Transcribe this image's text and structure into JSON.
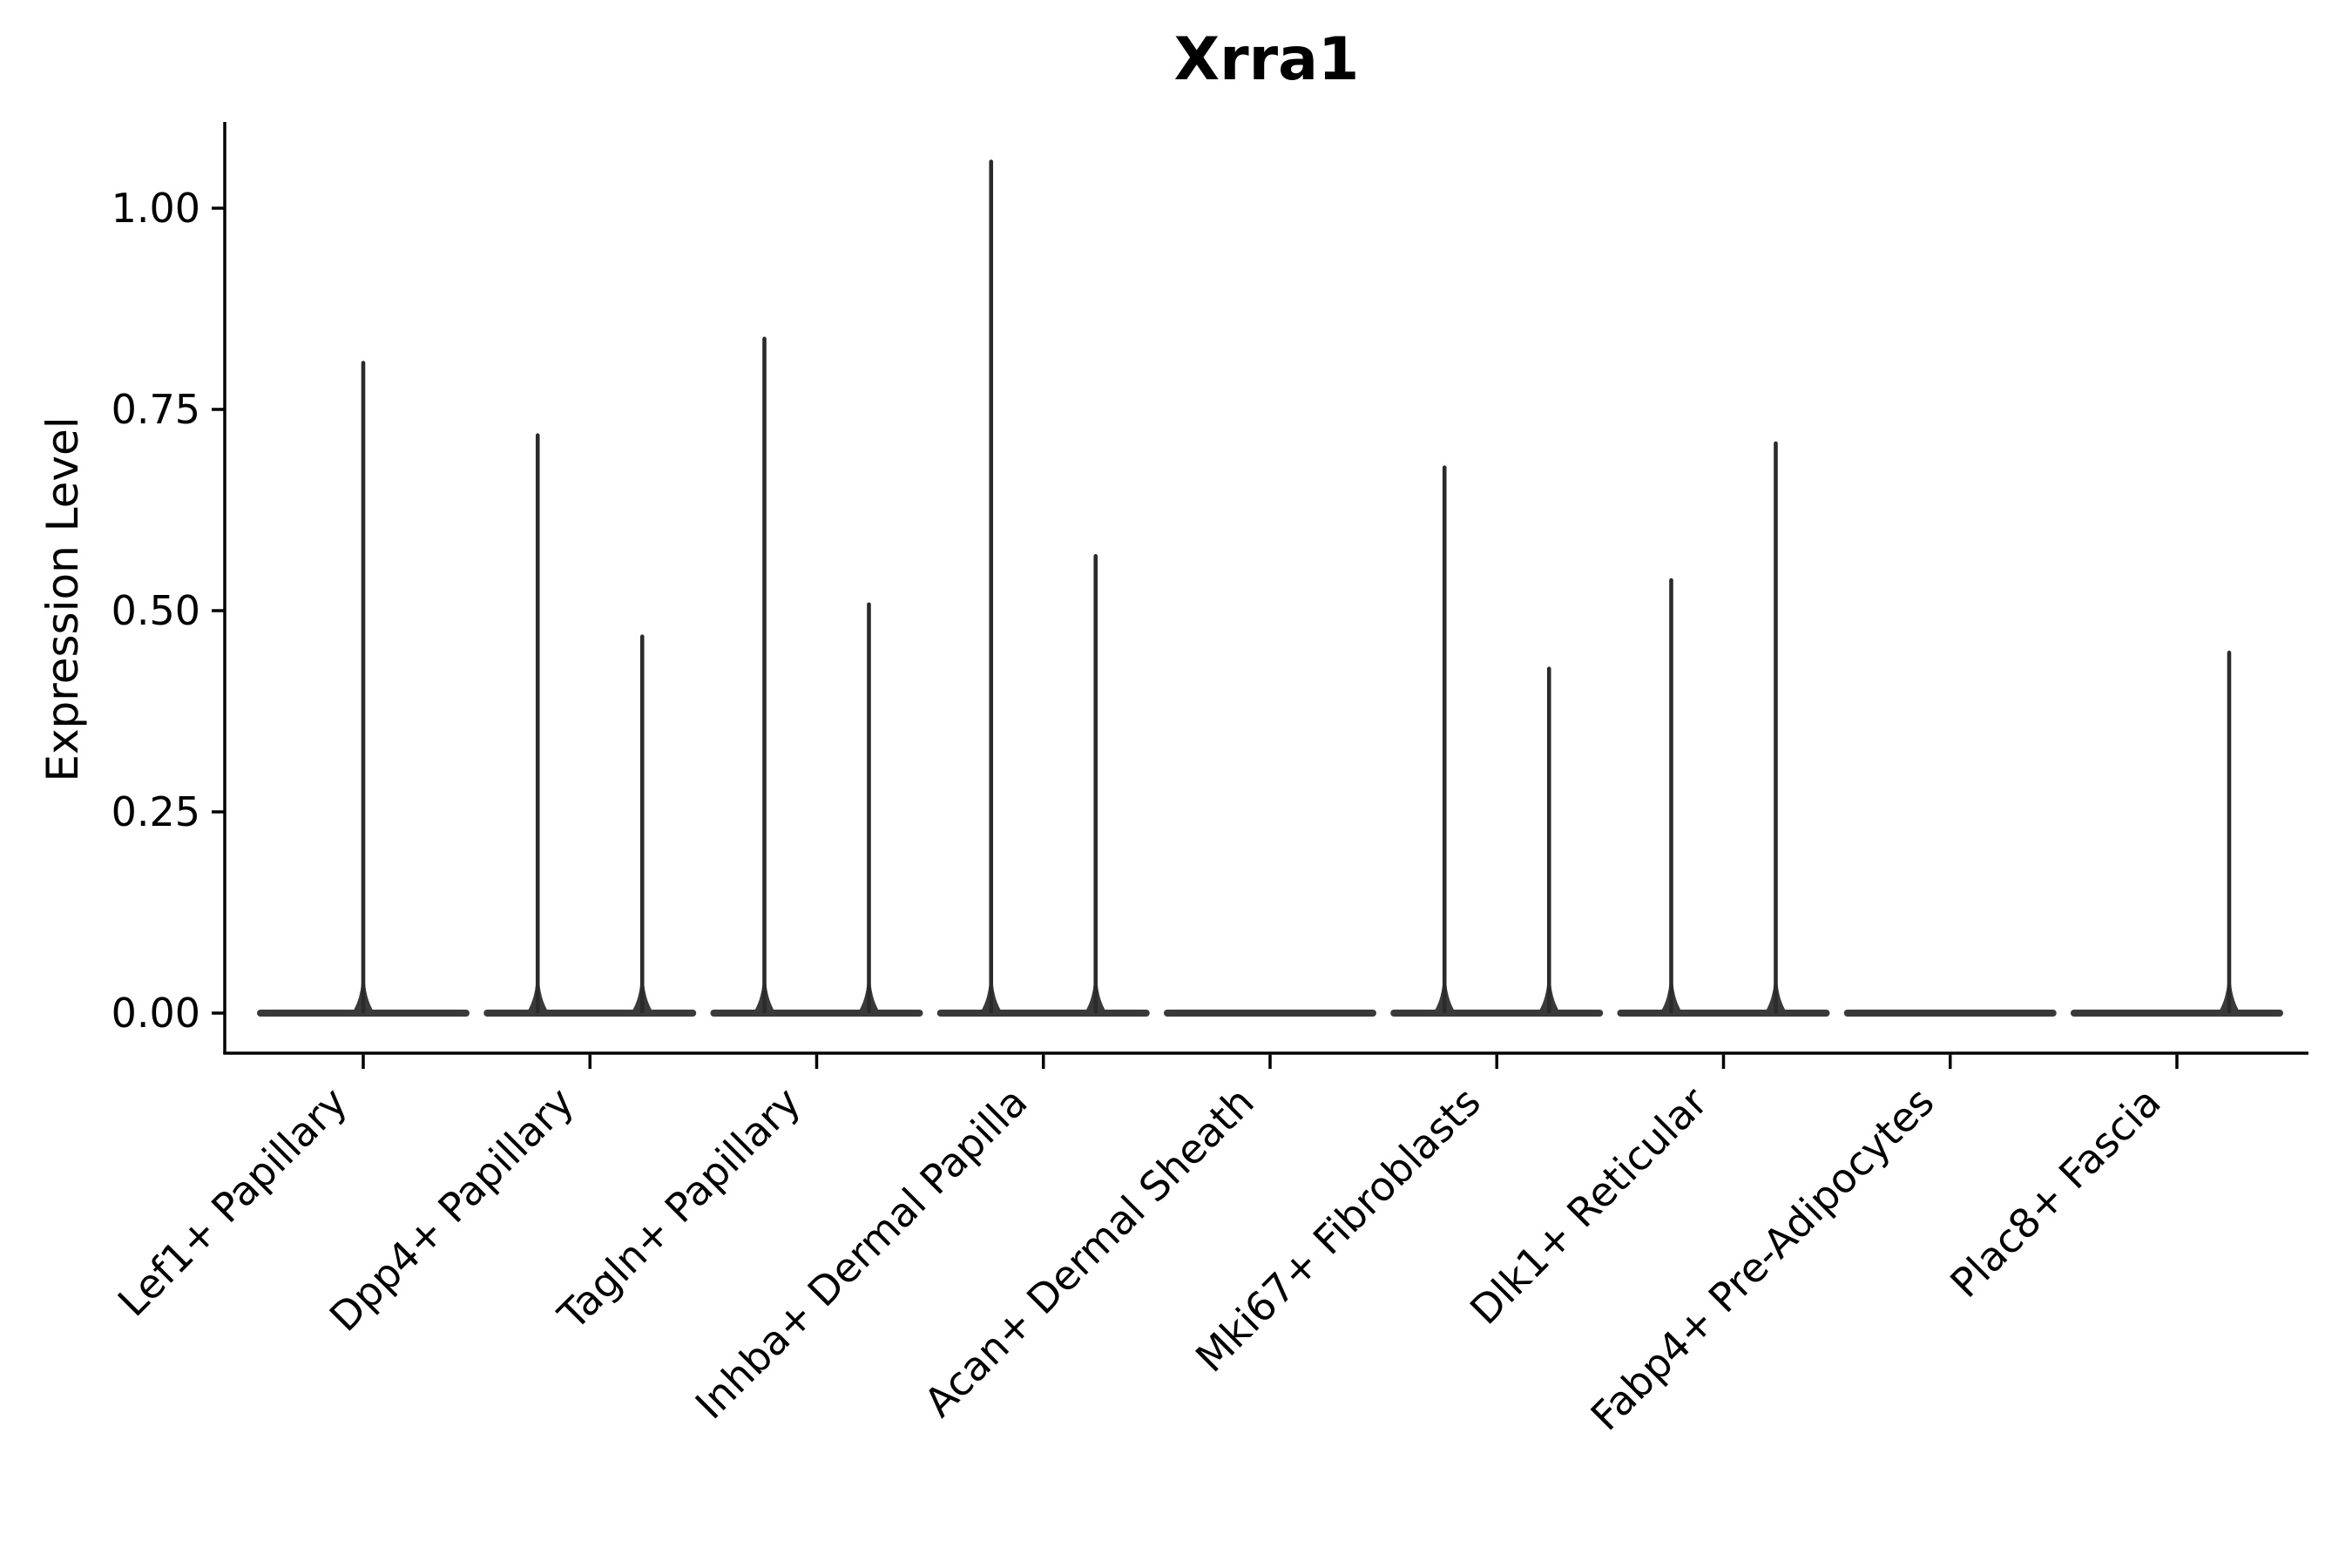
{
  "figure": {
    "background": "#ffffff"
  },
  "chart_data": {
    "type": "violin",
    "title": "Xrra1",
    "ylabel": "Expression Level",
    "xlabel": "",
    "grid": false,
    "legend": "none",
    "x_tick_rotation": 45,
    "ylim": [
      -0.05,
      1.11
    ],
    "yticks": [
      {
        "value": 0.0,
        "label": "0.00"
      },
      {
        "value": 0.25,
        "label": "0.25"
      },
      {
        "value": 0.5,
        "label": "0.50"
      },
      {
        "value": 0.75,
        "label": "0.75"
      },
      {
        "value": 1.0,
        "label": "1.00"
      }
    ],
    "categories": [
      "Lef1+ Papillary",
      "Dpp4+ Papillary",
      "Tagln+ Papillary",
      "Inhba+ Dermal Papilla",
      "Acan+ Dermal Sheath",
      "Mki67+ Fibroblasts",
      "Dlk1+ Reticular",
      "Fabp4+ Pre-Adipocytes",
      "Plac8+ Fascia"
    ],
    "violins": [
      {
        "category": "Lef1+ Papillary",
        "spikes": [
          {
            "offset": 0,
            "max": 0.81
          }
        ]
      },
      {
        "category": "Dpp4+ Papillary",
        "spikes": [
          {
            "offset": -60,
            "max": 0.72
          },
          {
            "offset": 60,
            "max": 0.47
          }
        ]
      },
      {
        "category": "Tagln+ Papillary",
        "spikes": [
          {
            "offset": -60,
            "max": 0.84
          },
          {
            "offset": 60,
            "max": 0.51
          }
        ]
      },
      {
        "category": "Inhba+ Dermal Papilla",
        "spikes": [
          {
            "offset": -60,
            "max": 1.06
          },
          {
            "offset": 60,
            "max": 0.57
          }
        ]
      },
      {
        "category": "Acan+ Dermal Sheath",
        "spikes": []
      },
      {
        "category": "Mki67+ Fibroblasts",
        "spikes": [
          {
            "offset": -60,
            "max": 0.68
          },
          {
            "offset": 60,
            "max": 0.43
          }
        ]
      },
      {
        "category": "Dlk1+ Reticular",
        "spikes": [
          {
            "offset": -60,
            "max": 0.54
          },
          {
            "offset": 60,
            "max": 0.71
          }
        ]
      },
      {
        "category": "Fabp4+ Pre-Adipocytes",
        "spikes": []
      },
      {
        "category": "Plac8+ Fascia",
        "spikes": [
          {
            "offset": 60,
            "max": 0.45
          }
        ]
      }
    ],
    "colors": {
      "violin_base": "#3a3a3a",
      "violin_spike": "#2b2b2b",
      "axis": "#000000",
      "text": "#000000"
    }
  }
}
